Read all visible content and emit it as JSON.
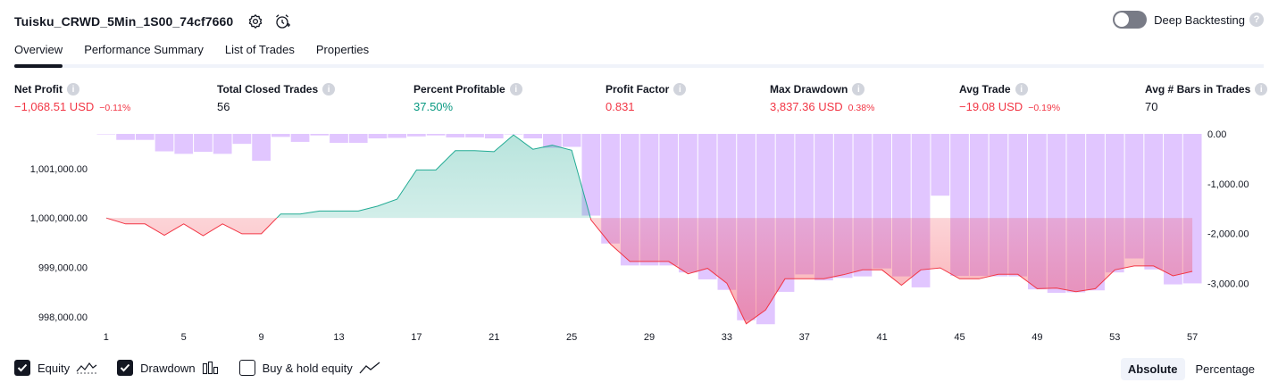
{
  "header": {
    "title": "Tuisku_CRWD_5Min_1S00_74cf7660",
    "deep_backtesting_label": "Deep Backtesting"
  },
  "tabs": [
    {
      "label": "Overview",
      "active": true
    },
    {
      "label": "Performance Summary",
      "active": false
    },
    {
      "label": "List of Trades",
      "active": false
    },
    {
      "label": "Properties",
      "active": false
    }
  ],
  "metrics": [
    {
      "label": "Net Profit",
      "value": "−1,068.51 USD",
      "sub": "−0.11%",
      "tone": "neg"
    },
    {
      "label": "Total Closed Trades",
      "value": "56",
      "sub": "",
      "tone": "neu"
    },
    {
      "label": "Percent Profitable",
      "value": "37.50%",
      "sub": "",
      "tone": "pos"
    },
    {
      "label": "Profit Factor",
      "value": "0.831",
      "sub": "",
      "tone": "neg"
    },
    {
      "label": "Max Drawdown",
      "value": "3,837.36 USD",
      "sub": "0.38%",
      "tone": "neg"
    },
    {
      "label": "Avg Trade",
      "value": "−19.08 USD",
      "sub": "−0.19%",
      "tone": "neg"
    },
    {
      "label": "Avg # Bars in Trades",
      "value": "70",
      "sub": "",
      "tone": "neu"
    }
  ],
  "legend": {
    "equity_label": "Equity",
    "drawdown_label": "Drawdown",
    "buy_hold_label": "Buy & hold equity",
    "equity_checked": true,
    "drawdown_checked": true,
    "buy_hold_checked": false
  },
  "mode": {
    "absolute_label": "Absolute",
    "percentage_label": "Percentage",
    "active": "absolute"
  },
  "colors": {
    "equity_up": "#22ab94",
    "equity_down": "#f23645",
    "drawdown_bar": "#e1c6ff",
    "text_muted": "#131722"
  },
  "chart_data": {
    "type": "line",
    "x_ticks": [
      "1",
      "5",
      "9",
      "13",
      "17",
      "21",
      "25",
      "29",
      "33",
      "37",
      "41",
      "45",
      "49",
      "53",
      "57"
    ],
    "left_ticks": [
      "1,001,000.00",
      "1,000,000.00",
      "999,000.00",
      "998,000.00"
    ],
    "left_tick_values": [
      1001000,
      1000000,
      999000,
      998000
    ],
    "right_ticks": [
      "0.00",
      "-1,000.00",
      "-2,000.00",
      "-3,000.00"
    ],
    "right_tick_values": [
      0,
      -1000,
      -2000,
      -3000
    ],
    "equity_baseline": 1000000,
    "x_range": [
      1,
      57
    ],
    "equity_range": [
      997800,
      1001700
    ],
    "drawdown_range": [
      -3870,
      0
    ],
    "series": [
      {
        "name": "Equity",
        "x": [
          1,
          2,
          3,
          4,
          5,
          6,
          7,
          8,
          9,
          10,
          11,
          12,
          13,
          14,
          15,
          16,
          17,
          18,
          19,
          20,
          21,
          22,
          23,
          24,
          25,
          26,
          27,
          28,
          29,
          30,
          31,
          32,
          33,
          34,
          35,
          36,
          37,
          38,
          39,
          40,
          41,
          42,
          43,
          44,
          45,
          46,
          47,
          48,
          49,
          50,
          51,
          52,
          53,
          54,
          55,
          56,
          57
        ],
        "values": [
          1000000,
          999880,
          999880,
          999650,
          999880,
          999640,
          999880,
          999680,
          999680,
          1000080,
          1000080,
          1000140,
          1000140,
          1000140,
          1000240,
          1000380,
          1000970,
          1000970,
          1001360,
          1001360,
          1001340,
          1001680,
          1001390,
          1001470,
          1001370,
          999960,
          999470,
          999120,
          999120,
          999120,
          998870,
          998980,
          998680,
          997860,
          998140,
          998770,
          998770,
          998770,
          998850,
          998950,
          998950,
          998640,
          998950,
          998990,
          998770,
          998770,
          998860,
          998860,
          998570,
          998580,
          998510,
          998570,
          998950,
          999030,
          999030,
          998830,
          998920
        ]
      },
      {
        "name": "Drawdown",
        "x": [
          1,
          2,
          3,
          4,
          5,
          6,
          7,
          8,
          9,
          10,
          11,
          12,
          13,
          14,
          15,
          16,
          17,
          18,
          19,
          20,
          21,
          22,
          23,
          24,
          25,
          26,
          27,
          28,
          29,
          30,
          31,
          32,
          33,
          34,
          35,
          36,
          37,
          38,
          39,
          40,
          41,
          42,
          43,
          44,
          45,
          46,
          47,
          48,
          49,
          50,
          51,
          52,
          53,
          54,
          55,
          56,
          57
        ],
        "values": [
          0,
          -120,
          -120,
          -350,
          -400,
          -360,
          -400,
          -200,
          -540,
          -60,
          -160,
          -30,
          -180,
          -180,
          -90,
          -80,
          -50,
          -30,
          -70,
          -70,
          -90,
          0,
          -90,
          -280,
          -260,
          -1640,
          -2200,
          -2640,
          -2640,
          -2640,
          -2780,
          -2920,
          -3130,
          -3740,
          -3820,
          -3170,
          -2820,
          -2940,
          -2890,
          -2860,
          -2700,
          -2860,
          -3080,
          -1240,
          -2850,
          -2850,
          -2860,
          -2860,
          -3120,
          -3190,
          -3180,
          -3140,
          -2780,
          -2500,
          -2720,
          -3020,
          -3000
        ]
      }
    ]
  }
}
